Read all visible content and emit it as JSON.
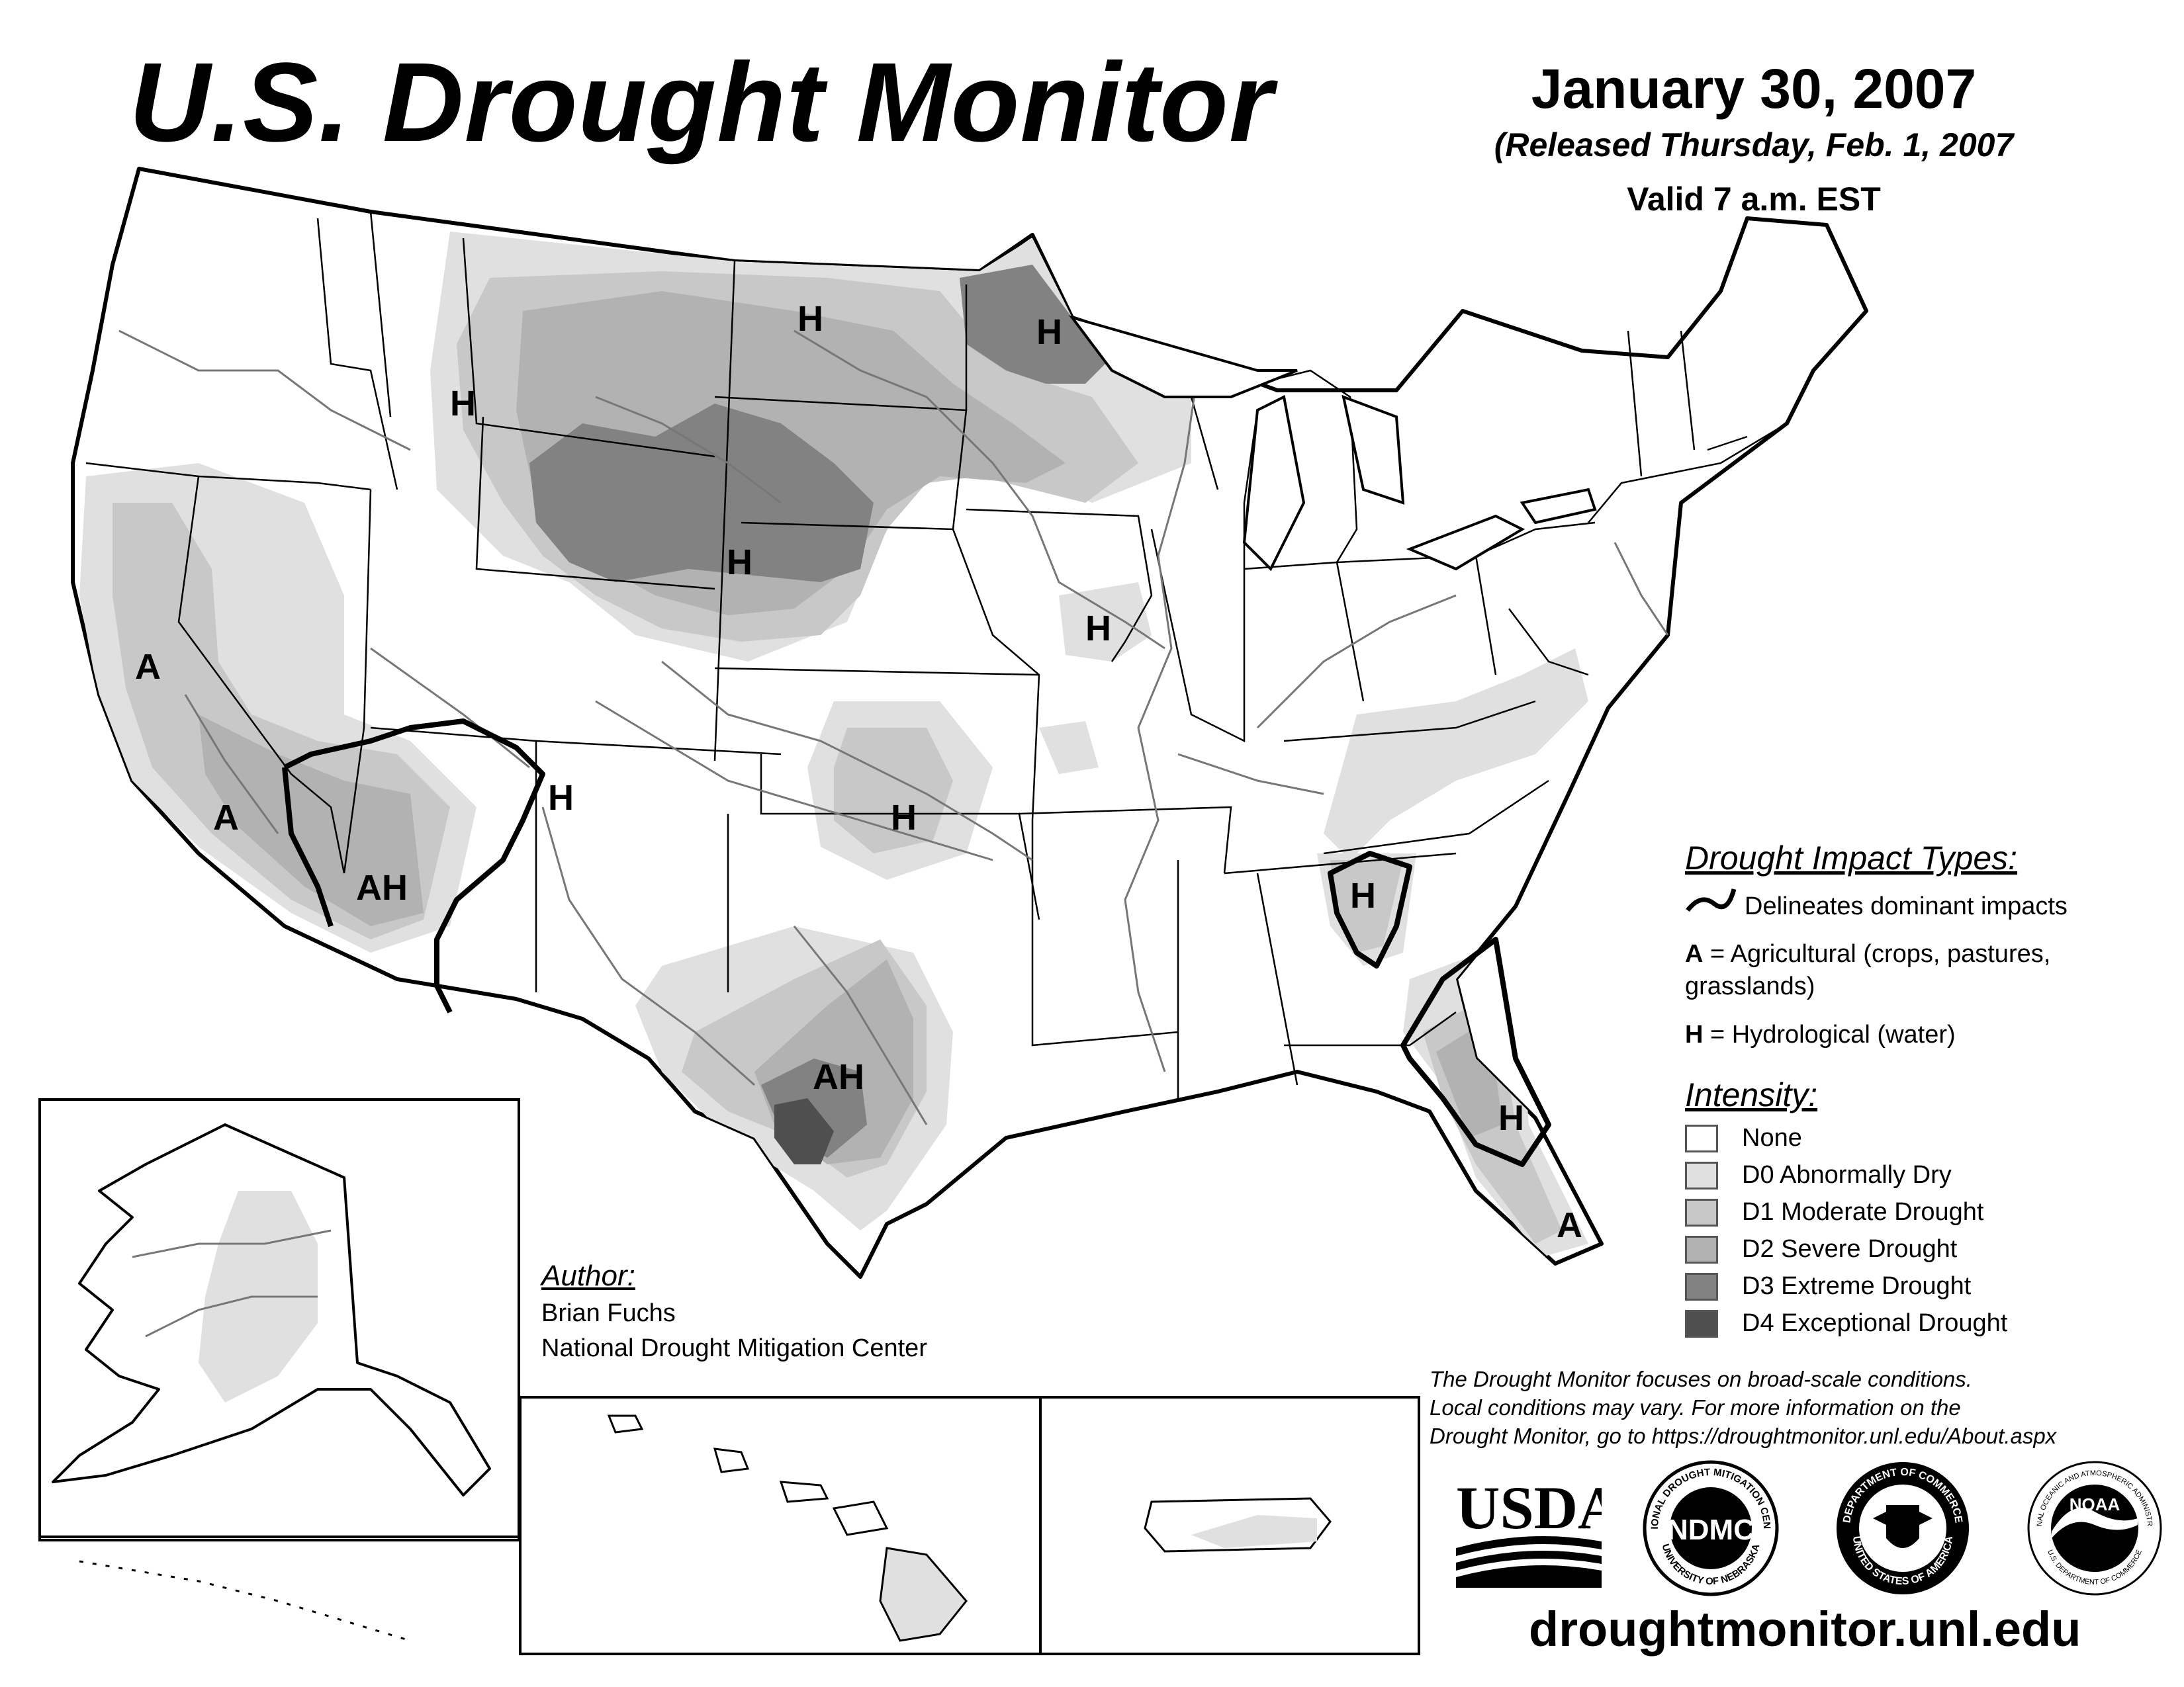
{
  "header": {
    "title": "U.S. Drought Monitor",
    "date": "January 30, 2007",
    "released": "(Released Thursday, Feb. 1, 2007",
    "valid": "Valid 7 a.m. EST"
  },
  "impact_legend": {
    "title": "Drought Impact Types:",
    "line_desc": "Delineates dominant impacts",
    "a_code": "A",
    "a_desc": " = Agricultural (crops, pastures, grasslands)",
    "h_code": "H",
    "h_desc": " = Hydrological (water)"
  },
  "intensity_legend": {
    "title": "Intensity:",
    "items": [
      {
        "label": "None",
        "color": "#ffffff"
      },
      {
        "label": "D0 Abnormally Dry",
        "color": "#e0e0e0"
      },
      {
        "label": "D1 Moderate Drought",
        "color": "#c8c8c8"
      },
      {
        "label": "D2 Severe Drought",
        "color": "#b2b2b2"
      },
      {
        "label": "D3 Extreme Drought",
        "color": "#828282"
      },
      {
        "label": "D4 Exceptional Drought",
        "color": "#4f4f4f"
      }
    ]
  },
  "map_labels": [
    {
      "text": "H",
      "name": "label-h-idaho"
    },
    {
      "text": "H",
      "name": "label-h-north-dakota"
    },
    {
      "text": "H",
      "name": "label-h-minnesota"
    },
    {
      "text": "H",
      "name": "label-h-nebraska"
    },
    {
      "text": "H",
      "name": "label-h-iowa"
    },
    {
      "text": "A",
      "name": "label-a-california-north"
    },
    {
      "text": "A",
      "name": "label-a-california-south"
    },
    {
      "text": "H",
      "name": "label-h-colorado"
    },
    {
      "text": "AH",
      "name": "label-ah-arizona"
    },
    {
      "text": "H",
      "name": "label-h-oklahoma"
    },
    {
      "text": "AH",
      "name": "label-ah-texas"
    },
    {
      "text": "H",
      "name": "label-h-georgia"
    },
    {
      "text": "H",
      "name": "label-h-florida"
    },
    {
      "text": "A",
      "name": "label-a-florida-south"
    }
  ],
  "author": {
    "label": "Author:",
    "name": "Brian Fuchs",
    "org": "National Drought Mitigation Center"
  },
  "disclaimer": {
    "line1": "The Drought Monitor focuses on broad-scale conditions.",
    "line2": "Local conditions may vary. For more information on the",
    "line3": "Drought Monitor, go to https://droughtmonitor.unl.edu/About.aspx"
  },
  "logos": {
    "usda": "USDA",
    "ndmc": "NDMC",
    "ndmc_ring_top": "NATIONAL DROUGHT MITIGATION CENTER",
    "ndmc_ring_bottom": "UNIVERSITY OF NEBRASKA",
    "doc_ring_top": "DEPARTMENT OF COMMERCE",
    "doc_ring_bottom": "UNITED STATES OF AMERICA",
    "noaa": "NOAA",
    "noaa_ring_top": "NATIONAL OCEANIC AND ATMOSPHERIC ADMINISTRATION",
    "noaa_ring_bottom": "U.S. DEPARTMENT OF COMMERCE"
  },
  "footer": {
    "url": "droughtmonitor.unl.edu"
  }
}
